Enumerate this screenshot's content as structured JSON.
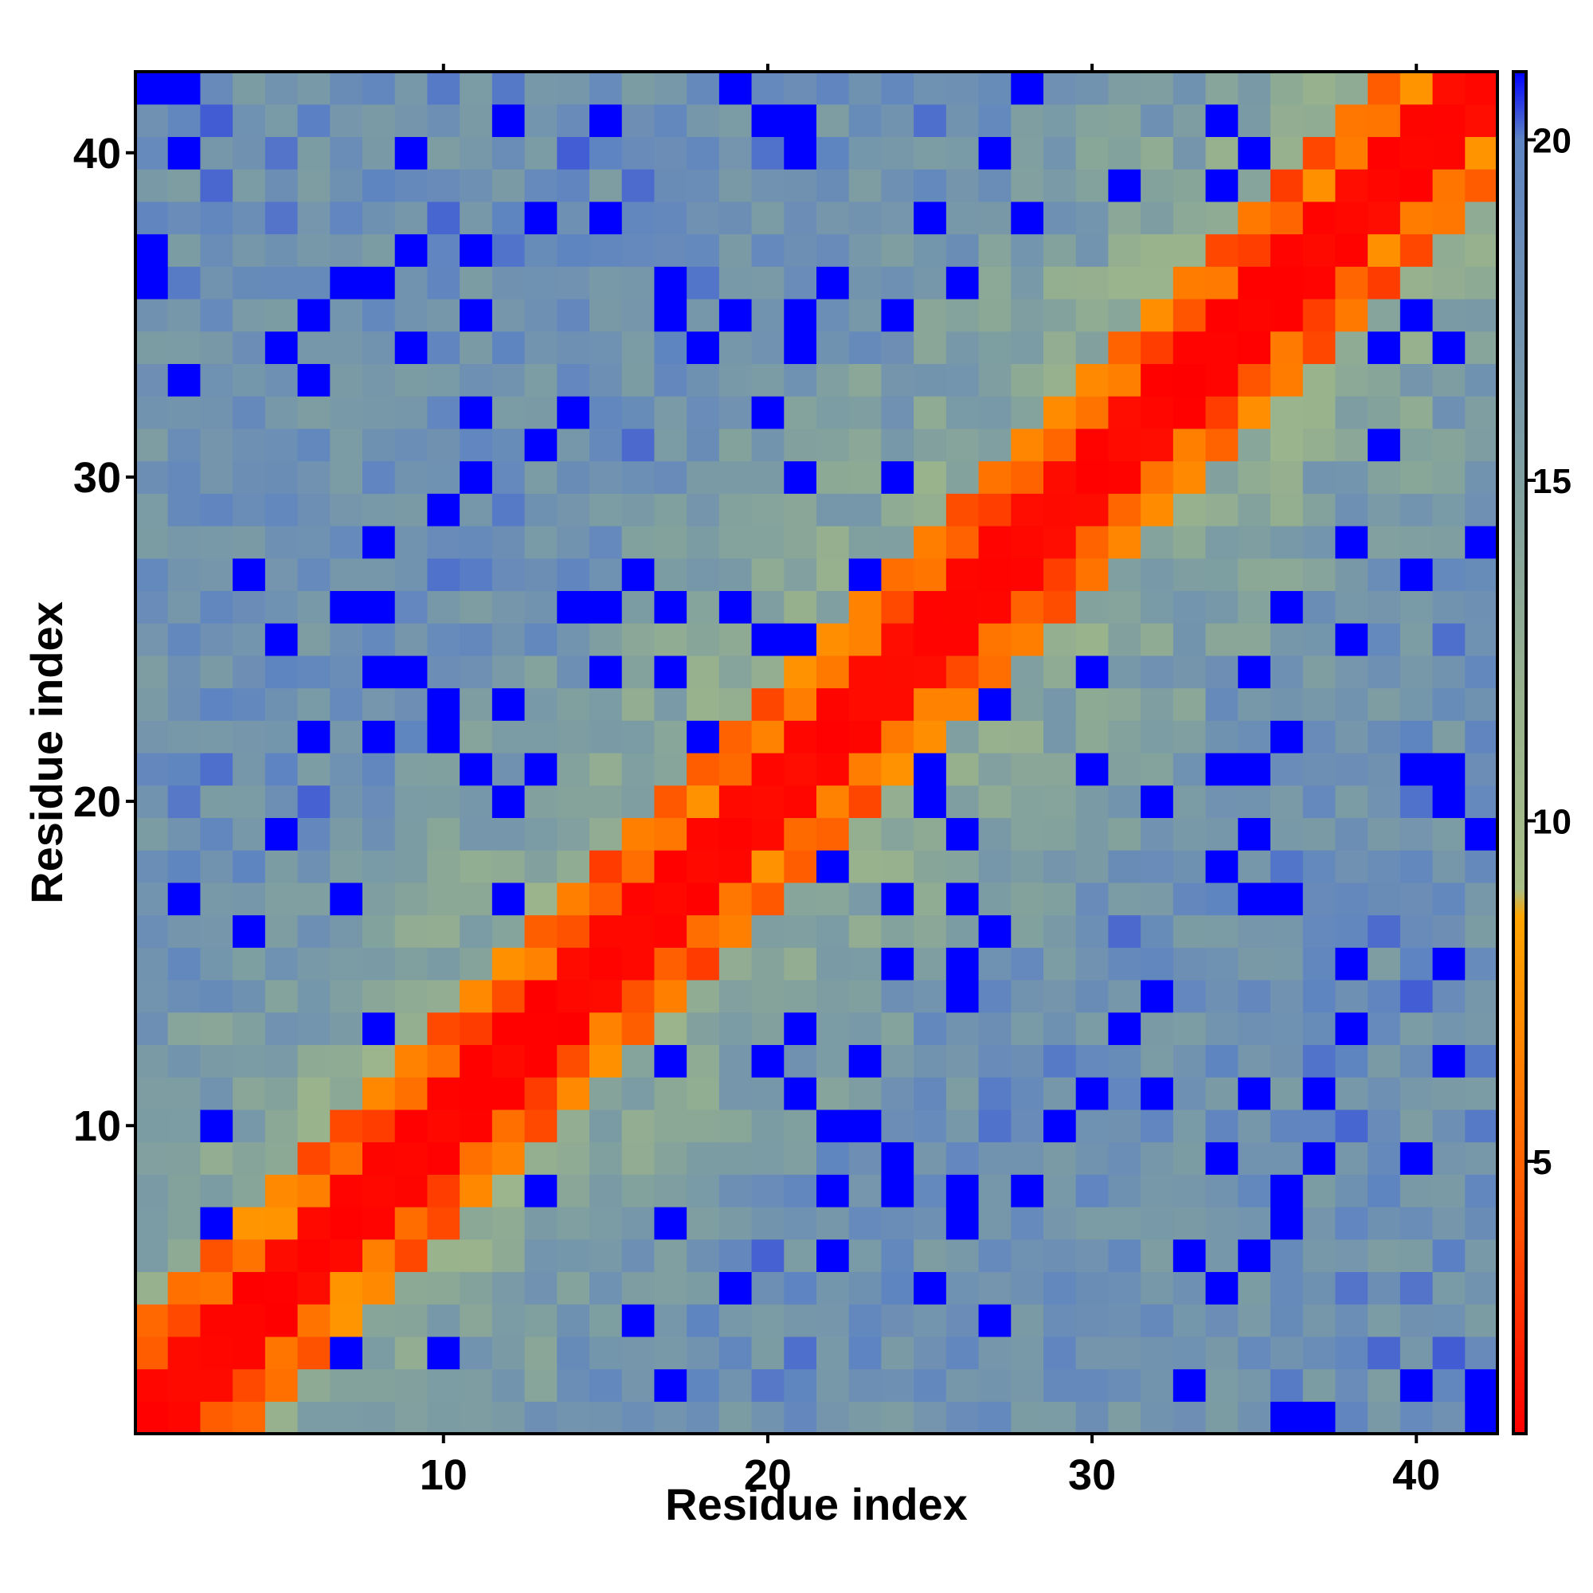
{
  "chart_data": {
    "type": "heatmap",
    "title": "",
    "xlabel": "Residue index",
    "ylabel": "Residue index",
    "x_range": [
      1,
      42
    ],
    "y_range": [
      1,
      42
    ],
    "x_ticks": [
      10,
      20,
      30,
      40
    ],
    "y_ticks": [
      10,
      20,
      30,
      40
    ],
    "colorbar": {
      "range": [
        1,
        21
      ],
      "ticks": [
        5,
        10,
        15,
        20
      ],
      "colors": [
        "#ff0000",
        "#ff5000",
        "#ff8a00",
        "#ffa500",
        "#a8bf88",
        "#96b08e",
        "#7f9fa0",
        "#6d8fb4",
        "#5e84c2",
        "#0000ff"
      ],
      "stops": [
        0.0,
        0.15,
        0.3,
        0.38,
        0.4,
        0.55,
        0.7,
        0.85,
        0.95,
        1.0
      ],
      "legend_placement": "right"
    },
    "matrix_generation": "Pairwise distance-like values; diagonal band near 1, increasing with |i-j|, with scattered high values.",
    "grid": false
  }
}
